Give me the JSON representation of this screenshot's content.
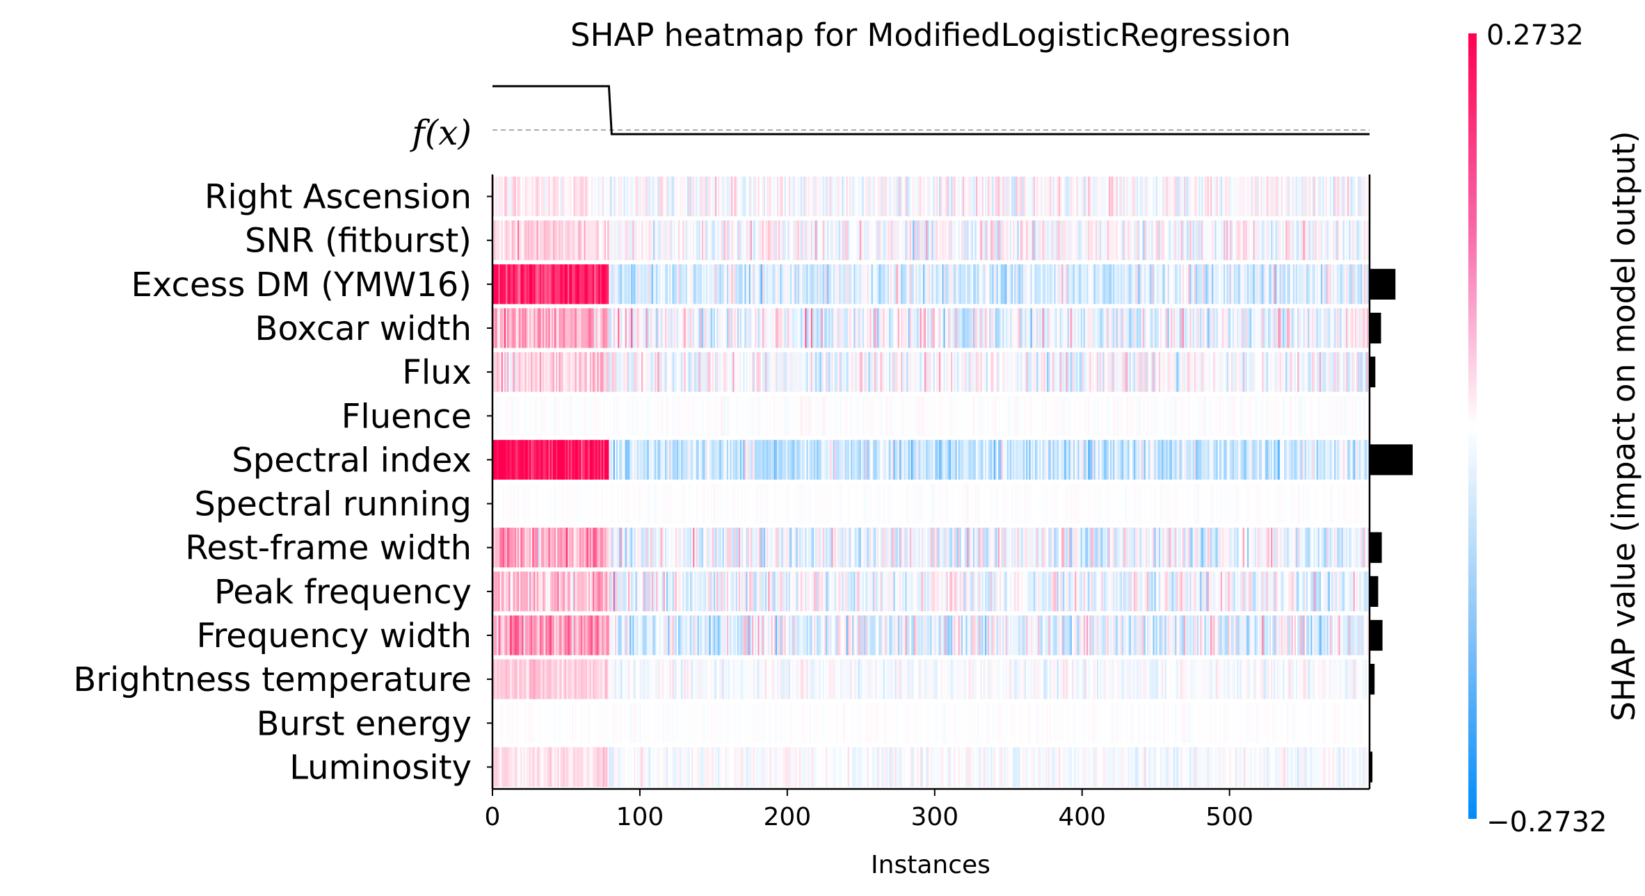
{
  "chart_data": {
    "type": "heatmap",
    "title": "SHAP heatmap for ModifiedLogisticRegression",
    "xlabel": "Instances",
    "fx_label": "f(x)",
    "colorbar_label": "SHAP value (impact on model output)",
    "colorbar_range": [
      -0.2732,
      0.2732
    ],
    "colorbar_ticks": [
      "0.2732",
      "−0.2732"
    ],
    "xlim": [
      0,
      595
    ],
    "x_ticks": [
      0,
      100,
      200,
      300,
      400,
      500
    ],
    "x_tick_labels": [
      "0",
      "100",
      "200",
      "300",
      "400",
      "500"
    ],
    "n_instances": 595,
    "fx_switch_instance": 79,
    "fx_levels": {
      "high": 1.0,
      "low": 0.0,
      "baseline": 0.05
    },
    "colors": {
      "positive": "#ff0051",
      "negative": "#008bfb",
      "mid": "#ffffff",
      "bar": "#000000"
    },
    "features": [
      {
        "name": "Right Ascension",
        "group1_mean": 0.02,
        "group2_mean": 0.0,
        "noise": 0.03,
        "importance": 0.0
      },
      {
        "name": "SNR (fitburst)",
        "group1_mean": 0.04,
        "group2_mean": 0.0,
        "noise": 0.035,
        "importance": 0.0
      },
      {
        "name": "Excess DM (YMW16)",
        "group1_mean": 0.24,
        "group2_mean": -0.035,
        "noise": 0.045,
        "importance": 0.18
      },
      {
        "name": "Boxcar width",
        "group1_mean": 0.09,
        "group2_mean": -0.012,
        "noise": 0.05,
        "importance": 0.08
      },
      {
        "name": "Flux",
        "group1_mean": 0.05,
        "group2_mean": -0.005,
        "noise": 0.04,
        "importance": 0.04
      },
      {
        "name": "Fluence",
        "group1_mean": 0.0,
        "group2_mean": 0.0,
        "noise": 0.006,
        "importance": 0.0
      },
      {
        "name": "Spectral index",
        "group1_mean": 0.27,
        "group2_mean": -0.055,
        "noise": 0.045,
        "importance": 0.3
      },
      {
        "name": "Spectral running",
        "group1_mean": 0.0,
        "group2_mean": 0.0,
        "noise": 0.004,
        "importance": 0.0
      },
      {
        "name": "Rest-frame width",
        "group1_mean": 0.1,
        "group2_mean": -0.02,
        "noise": 0.05,
        "importance": 0.085
      },
      {
        "name": "Peak frequency",
        "group1_mean": 0.07,
        "group2_mean": -0.012,
        "noise": 0.045,
        "importance": 0.06
      },
      {
        "name": "Frequency width",
        "group1_mean": 0.11,
        "group2_mean": -0.022,
        "noise": 0.05,
        "importance": 0.09
      },
      {
        "name": "Brightness temperature",
        "group1_mean": 0.05,
        "group2_mean": -0.006,
        "noise": 0.02,
        "importance": 0.035
      },
      {
        "name": "Burst energy",
        "group1_mean": 0.0,
        "group2_mean": 0.0,
        "noise": 0.004,
        "importance": 0.0
      },
      {
        "name": "Luminosity",
        "group1_mean": 0.035,
        "group2_mean": -0.004,
        "noise": 0.02,
        "importance": 0.02
      }
    ]
  }
}
